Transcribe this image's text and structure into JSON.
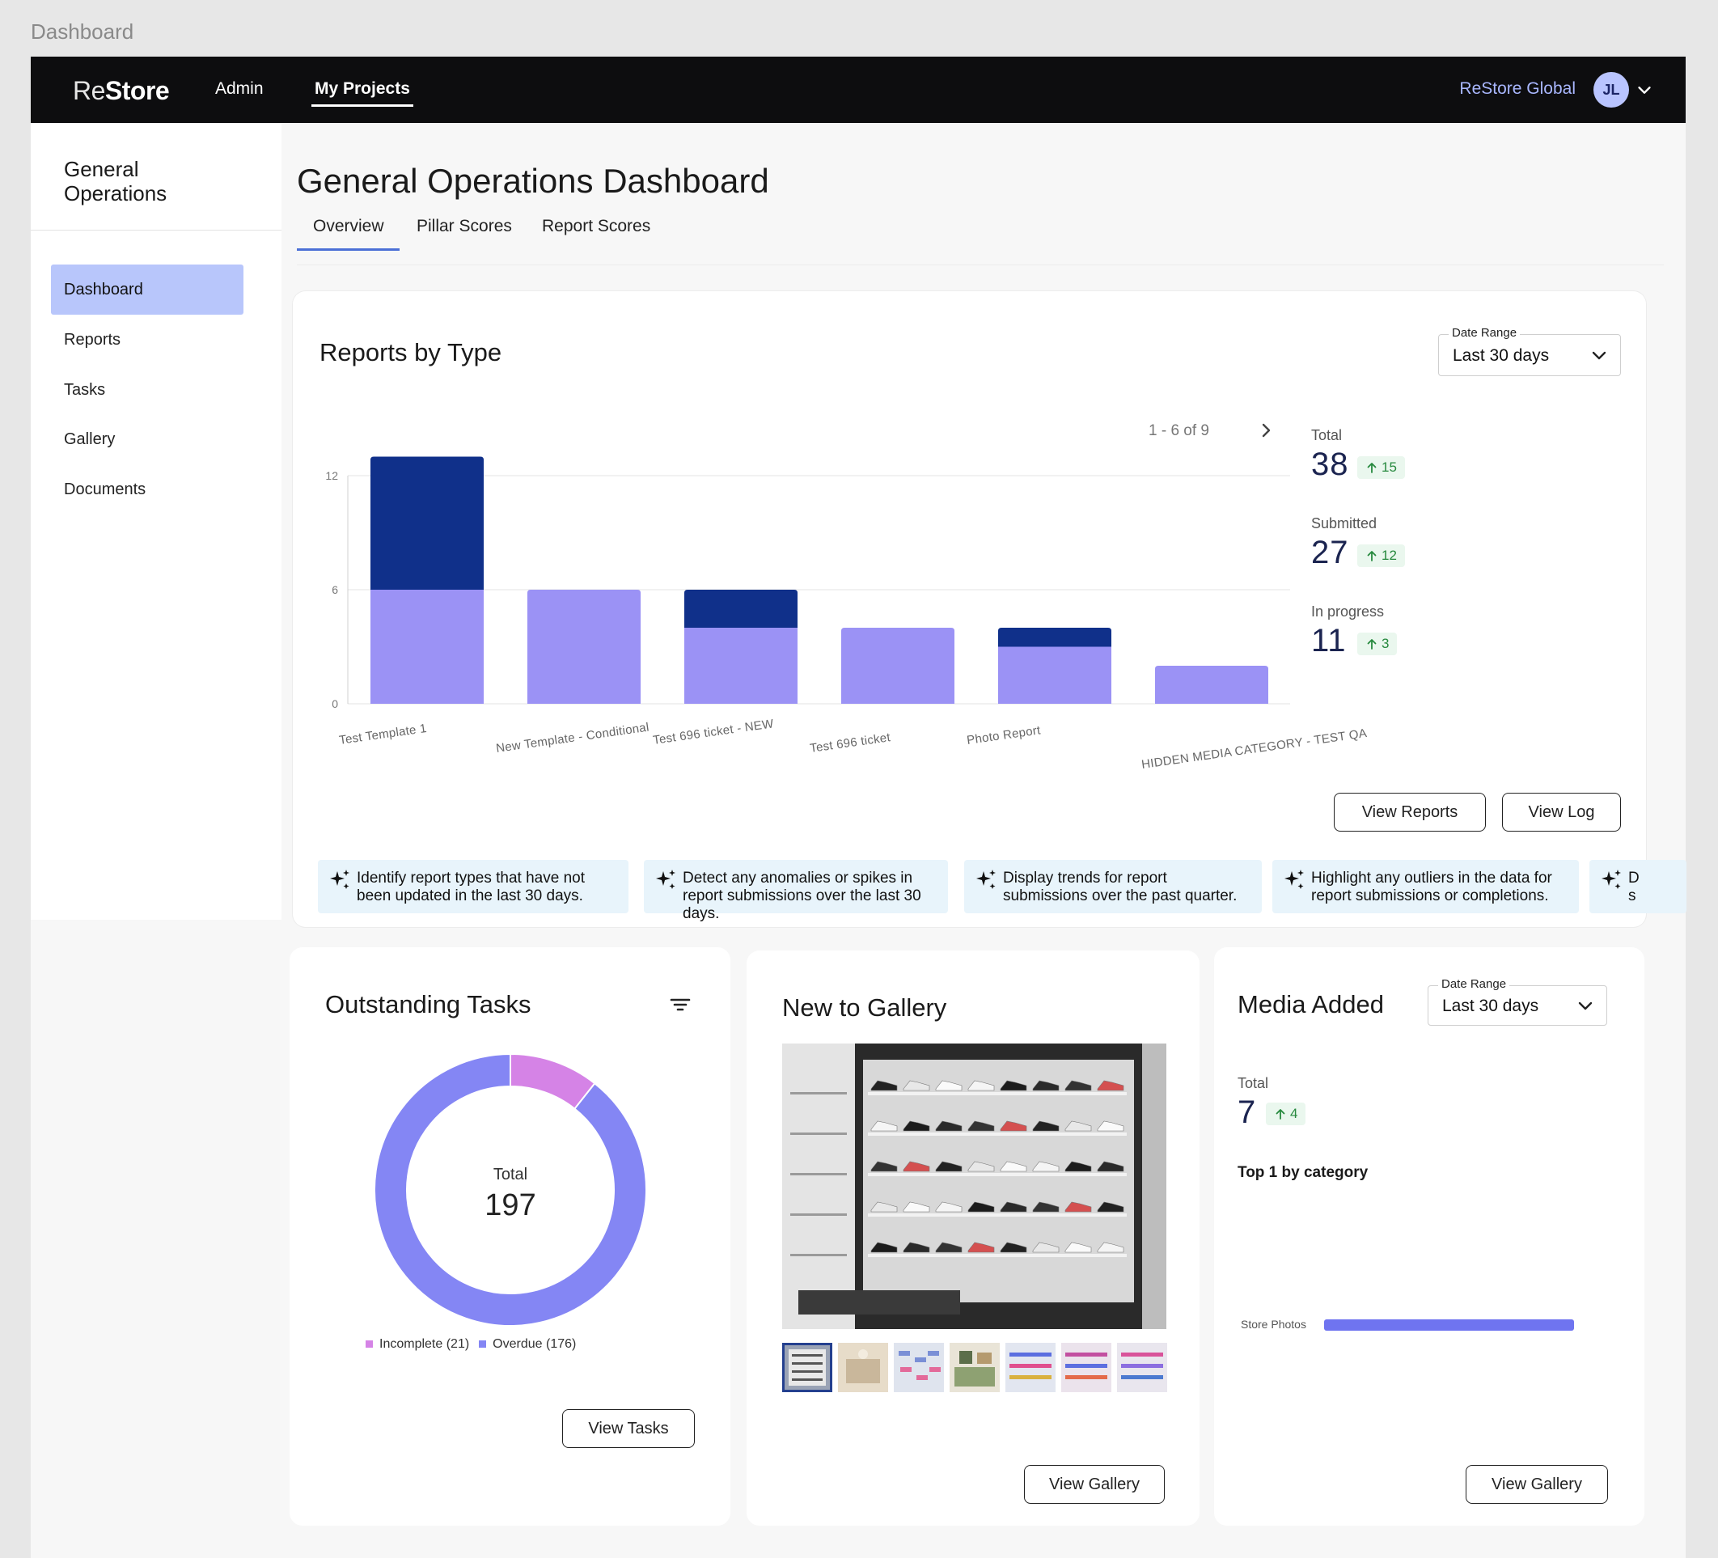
{
  "page_label": "Dashboard",
  "topbar": {
    "brand_re": "Re",
    "brand_store": "Store",
    "nav": [
      "Admin",
      "My Projects"
    ],
    "org": "ReStore Global",
    "avatar": "JL"
  },
  "sidebar": {
    "title_line1": "General",
    "title_line2": "Operations",
    "items": [
      "Dashboard",
      "Reports",
      "Tasks",
      "Gallery",
      "Documents"
    ]
  },
  "main": {
    "title": "General Operations Dashboard",
    "tabs": [
      "Overview",
      "Pillar Scores",
      "Report Scores"
    ]
  },
  "reports": {
    "title": "Reports by Type",
    "date_range_label": "Date Range",
    "date_range_value": "Last 30 days",
    "pager": "1 - 6 of 9",
    "stats": [
      {
        "label": "Total",
        "value": "38",
        "delta": "15"
      },
      {
        "label": "Submitted",
        "value": "27",
        "delta": "12"
      },
      {
        "label": "In progress",
        "value": "11",
        "delta": "3"
      }
    ],
    "buttons": {
      "view_reports": "View Reports",
      "view_log": "View Log"
    },
    "suggestions": [
      "Identify report types that have not been updated in the last 30 days.",
      "Detect any anomalies or spikes in report submissions over the last 30 days.",
      "Display trends for report submissions over the past quarter.",
      "Highlight any outliers in the data for report submissions or completions.",
      "D s"
    ]
  },
  "chart_data": {
    "type": "bar",
    "stacked": true,
    "categories": [
      "Test Template 1",
      "New Template - Conditional",
      "Test 696 ticket - NEW",
      "Test 696 ticket",
      "Photo Report",
      "HIDDEN MEDIA CATEGORY - TEST QA"
    ],
    "series": [
      {
        "values": [
          6,
          6,
          4,
          4,
          3,
          2
        ],
        "color": "#9b92f5"
      },
      {
        "values": [
          7,
          0,
          2,
          0,
          1,
          0
        ],
        "color": "#10308a"
      }
    ],
    "yticks": [
      "0",
      "6",
      "12"
    ],
    "ylim": [
      0,
      12
    ],
    "grid": true
  },
  "tasks": {
    "title": "Outstanding Tasks",
    "total_label": "Total",
    "total_value": "197",
    "segments": [
      {
        "label": "Incomplete (21)",
        "value": 21,
        "color": "#d583e6"
      },
      {
        "label": "Overdue (176)",
        "value": 176,
        "color": "#8486f4"
      }
    ],
    "button": "View Tasks"
  },
  "gallery": {
    "title": "New to Gallery",
    "thumbnail_count": 7,
    "button": "View Gallery"
  },
  "media": {
    "title": "Media Added",
    "date_range_label": "Date Range",
    "date_range_value": "Last 30 days",
    "total_label": "Total",
    "total_value": "7",
    "delta": "4",
    "top_heading": "Top 1 by category",
    "category": "Store Photos",
    "category_bar_fraction": 1,
    "button": "View Gallery"
  }
}
